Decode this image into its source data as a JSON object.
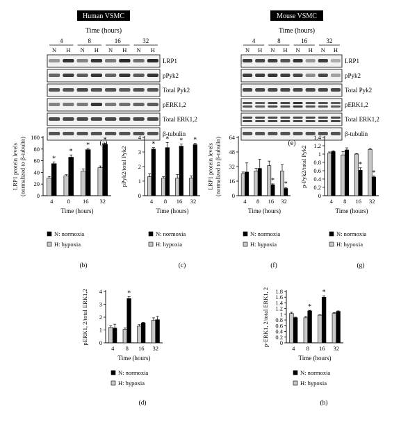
{
  "human": {
    "title": "Human VSMC",
    "time_label": "Time (hours)",
    "timepoints": [
      "4",
      "8",
      "16",
      "32"
    ],
    "condition_labels": [
      "N",
      "H"
    ],
    "rows": [
      "LRP1",
      "pPyk2",
      "Total Pyk2",
      "pERK1,2",
      "Total ERK1,2",
      "β-tubulin"
    ],
    "caption": "(a)"
  },
  "mouse": {
    "title": "Mouse VSMC",
    "time_label": "Time (hours)",
    "timepoints": [
      "4",
      "8",
      "16",
      "32"
    ],
    "condition_labels": [
      "N",
      "H"
    ],
    "rows": [
      "LRP1",
      "pPyk2",
      "Total Pyk2",
      "pERK1,2",
      "Total ERK1,2",
      "β-tubulin"
    ],
    "caption": "(e)"
  },
  "legend": {
    "normoxia": "N: normoxia",
    "hypoxia": "H: hypoxia"
  },
  "colors": {
    "normoxia": "#000000",
    "hypoxia": "#c8c8c8",
    "band": "#2a2a2a"
  },
  "chart_data": [
    {
      "id": "b",
      "type": "bar",
      "caption": "(b)",
      "categories": [
        "4",
        "8",
        "16",
        "32"
      ],
      "xlabel": "Time (hours)",
      "ylabel_lines": [
        "LRP1 protein levels",
        "(normalized to β-tubulin)"
      ],
      "ylim": [
        0,
        100
      ],
      "yticks": [
        "0",
        "20",
        "40",
        "60",
        "80",
        "100"
      ],
      "series": [
        {
          "name": "H: hypoxia",
          "values": [
            30,
            34,
            42,
            48
          ],
          "err": [
            3,
            2,
            4,
            3
          ]
        },
        {
          "name": "N: normoxia",
          "values": [
            55,
            66,
            79,
            88
          ],
          "err": [
            3,
            4,
            2,
            2
          ]
        }
      ],
      "significance": [
        "*",
        "*",
        "*",
        "*"
      ]
    },
    {
      "id": "c",
      "type": "bar",
      "caption": "(c)",
      "categories": [
        "4",
        "8",
        "16",
        "32"
      ],
      "xlabel": "Time (hours)",
      "ylabel_lines": [
        "pPyk2/total Pyk2"
      ],
      "ylim": [
        0,
        4
      ],
      "yticks": [
        "0",
        "1",
        "2",
        "3",
        "4"
      ],
      "series": [
        {
          "name": "H: hypoxia",
          "values": [
            1.3,
            1.2,
            1.2,
            1.2
          ],
          "err": [
            0.2,
            0.1,
            0.25,
            0.15
          ]
        },
        {
          "name": "N: normoxia",
          "values": [
            3.2,
            3.3,
            3.4,
            3.5
          ],
          "err": [
            0.1,
            0.35,
            0.15,
            0.1
          ]
        }
      ],
      "significance": [
        "*",
        "*",
        "*",
        "*"
      ]
    },
    {
      "id": "f",
      "type": "bar",
      "caption": "(f)",
      "categories": [
        "4",
        "8",
        "16",
        "32"
      ],
      "xlabel": "Time (hours)",
      "ylabel_lines": [
        "LRP1 protein levels",
        "(normalized to β-tubulin)"
      ],
      "ylim": [
        0,
        64
      ],
      "yticks": [
        "0",
        "16",
        "32",
        "48",
        "64"
      ],
      "series": [
        {
          "name": "H: hypoxia",
          "values": [
            24,
            27,
            33,
            27
          ],
          "err": [
            2,
            3,
            5,
            7
          ]
        },
        {
          "name": "N: normoxia",
          "values": [
            26,
            30,
            12,
            8
          ],
          "err": [
            10,
            10,
            1,
            1
          ]
        }
      ],
      "significance": [
        "",
        "",
        "*",
        "*"
      ]
    },
    {
      "id": "g",
      "type": "bar",
      "caption": "(g)",
      "categories": [
        "4",
        "8",
        "16",
        "32"
      ],
      "xlabel": "Time (hours)",
      "ylabel_lines": [
        "p-Pyk2/total Pyk2"
      ],
      "ylim": [
        0,
        1.4
      ],
      "yticks": [
        "0",
        "0.2",
        "0.4",
        "0.6",
        "0.8",
        "1",
        "1.2",
        "1.4"
      ],
      "series": [
        {
          "name": "H: hypoxia",
          "values": [
            1.02,
            0.98,
            1.0,
            1.11
          ],
          "err": [
            0.03,
            0.08,
            0.01,
            0.03
          ]
        },
        {
          "name": "N: normoxia",
          "values": [
            1.06,
            1.1,
            0.61,
            0.45
          ],
          "err": [
            0.02,
            0.05,
            0.06,
            0.02
          ]
        }
      ],
      "significance": [
        "",
        "",
        "*",
        "*"
      ]
    },
    {
      "id": "d",
      "type": "bar",
      "caption": "(d)",
      "categories": [
        "4",
        "8",
        "16",
        "32"
      ],
      "xlabel": "Time (hours)",
      "ylabel_lines": [
        "pERK1, 2/total ERK1,2"
      ],
      "ylim": [
        0,
        4
      ],
      "yticks": [
        "0",
        "1",
        "2",
        "3",
        "4"
      ],
      "series": [
        {
          "name": "H: hypoxia",
          "values": [
            1.2,
            1.05,
            1.3,
            1.75
          ],
          "err": [
            0.12,
            0.1,
            0.12,
            0.2
          ]
        },
        {
          "name": "N: normoxia",
          "values": [
            1.15,
            3.45,
            1.55,
            1.8
          ],
          "err": [
            0.3,
            0.15,
            0.05,
            0.25
          ]
        }
      ],
      "significance": [
        "",
        "*",
        "",
        ""
      ]
    },
    {
      "id": "h",
      "type": "bar",
      "caption": "(h)",
      "categories": [
        "4",
        "8",
        "16",
        "32"
      ],
      "xlabel": "Time (hours)",
      "ylabel_lines": [
        "p-ERK1, 2/total ERK1, 2"
      ],
      "ylim": [
        0,
        1.8
      ],
      "yticks": [
        "0",
        "0.2",
        "0.4",
        "0.6",
        "0.8",
        "1",
        "1.2",
        "1.4",
        "1.6",
        "1.8"
      ],
      "series": [
        {
          "name": "H: hypoxia",
          "values": [
            1.03,
            0.88,
            0.97,
            1.03
          ],
          "err": [
            0.04,
            0.04,
            0.01,
            0.03
          ]
        },
        {
          "name": "N: normoxia",
          "values": [
            0.88,
            1.12,
            1.6,
            1.1
          ],
          "err": [
            0.02,
            0.02,
            0.05,
            0.02
          ]
        }
      ],
      "significance": [
        "",
        "*",
        "*",
        ""
      ]
    }
  ]
}
